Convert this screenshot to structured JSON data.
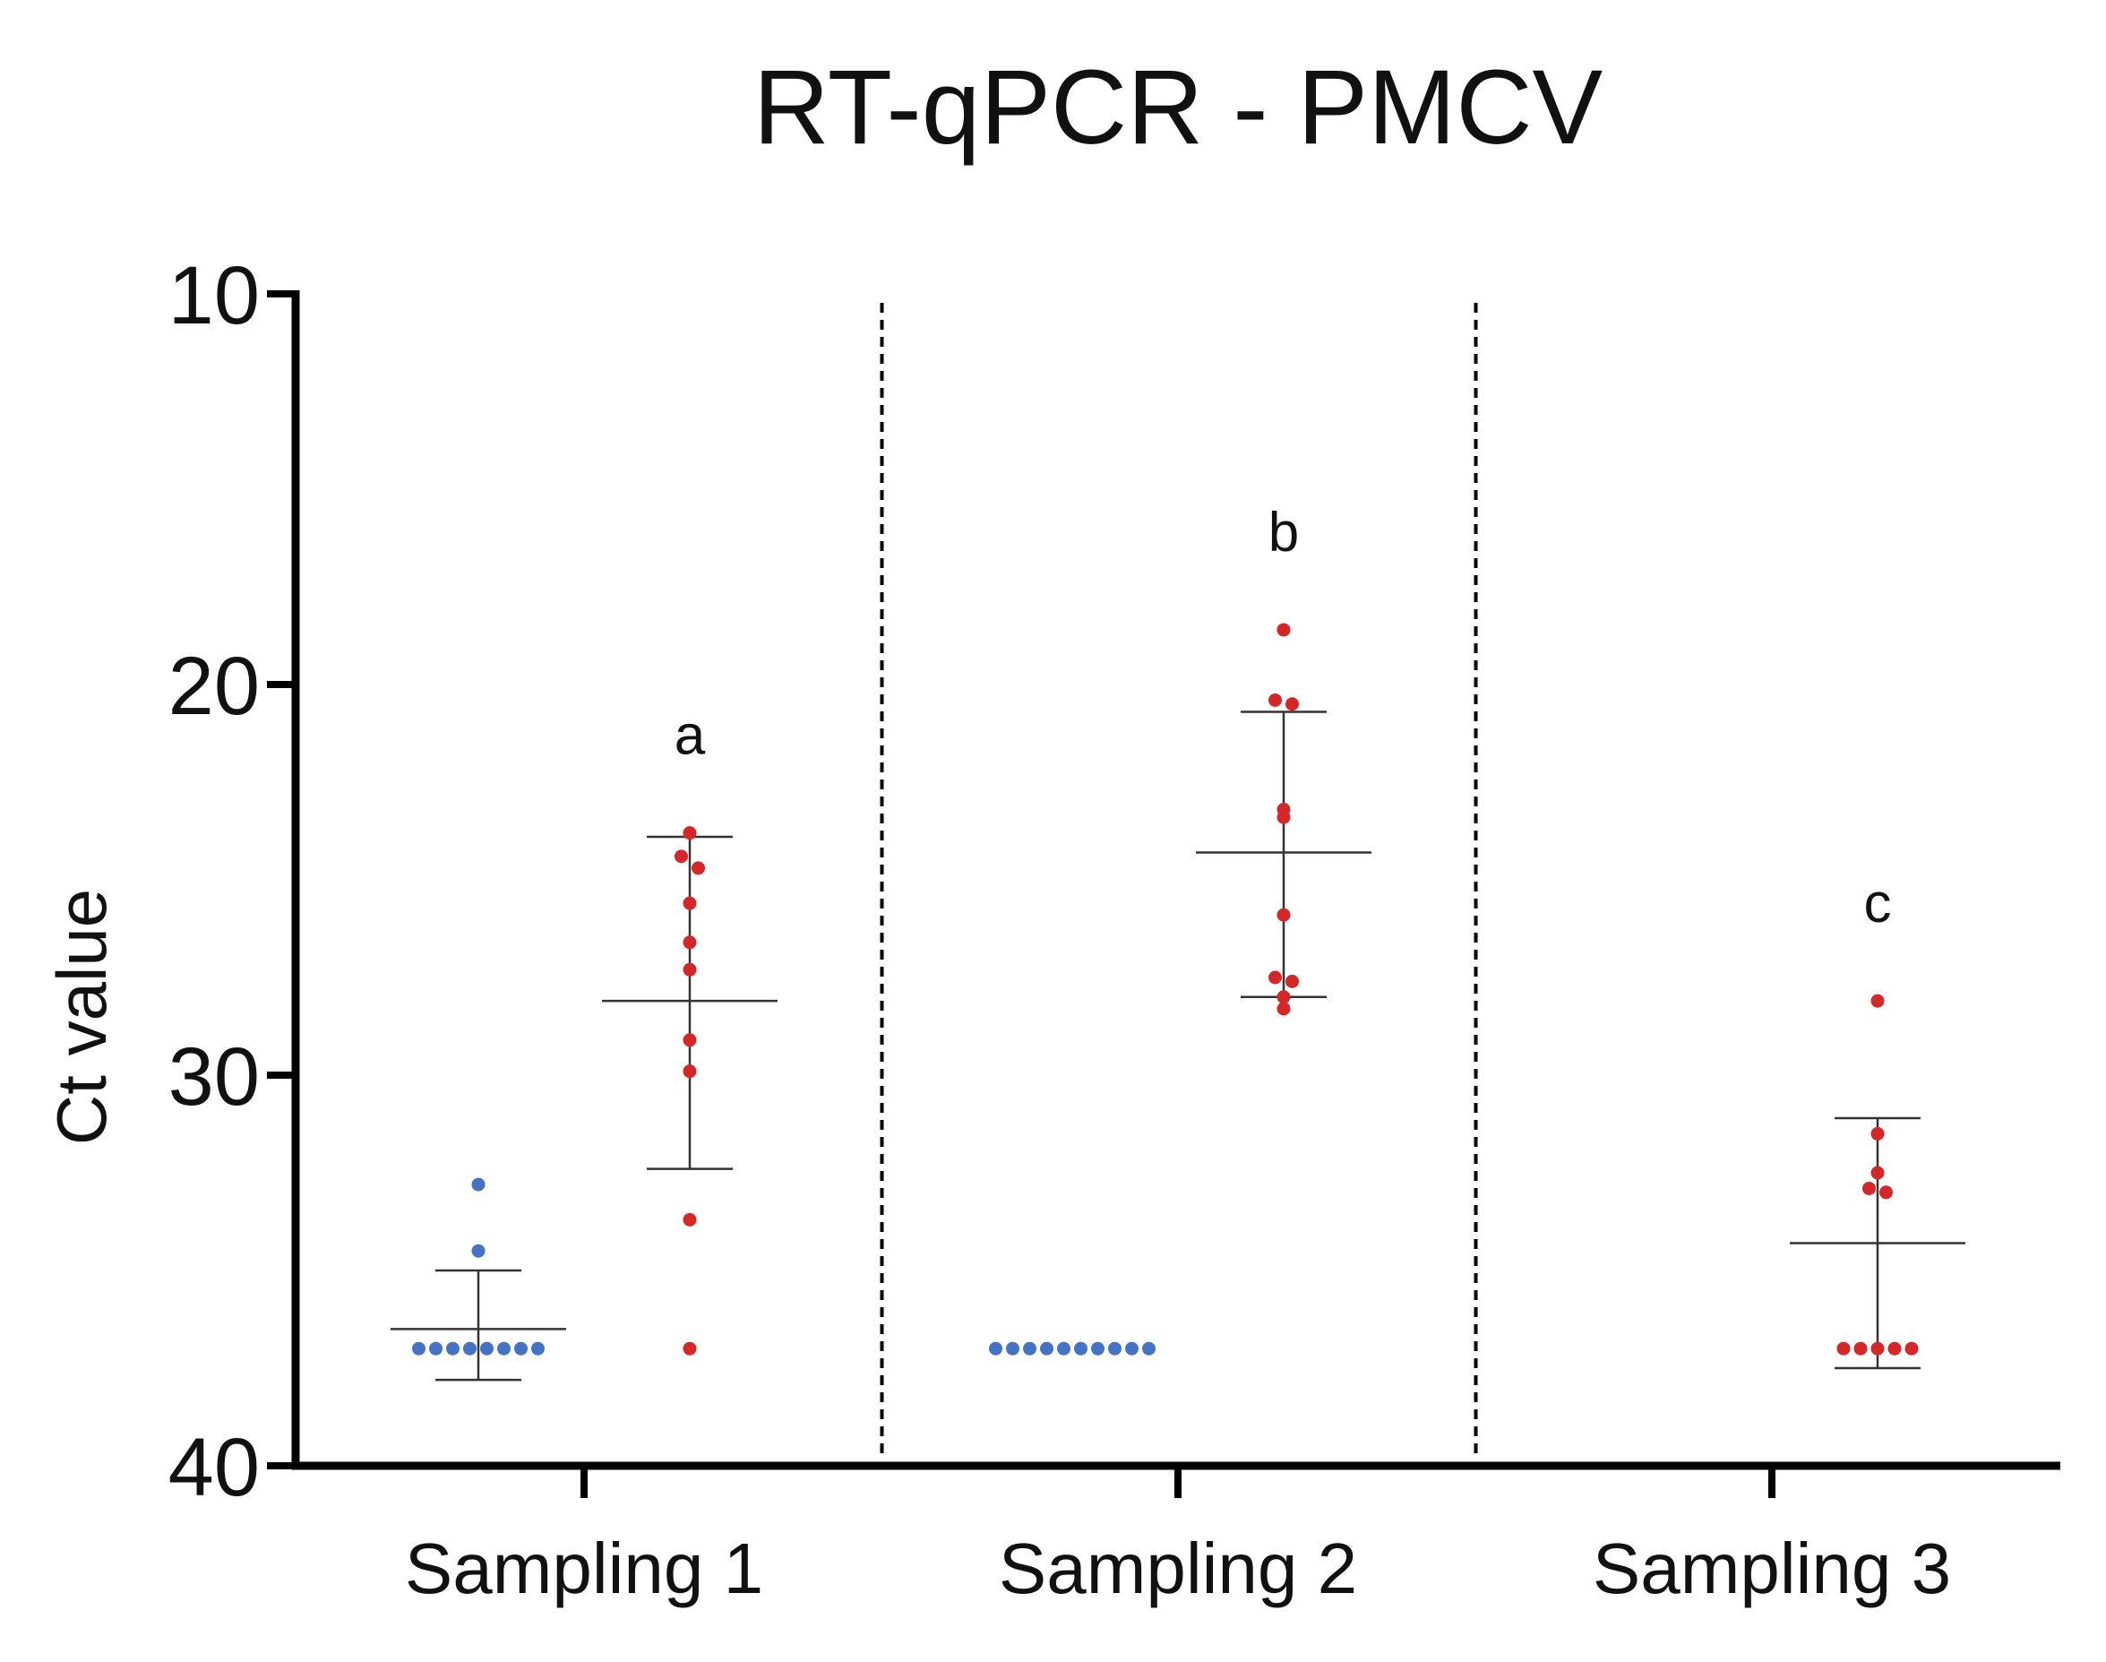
{
  "chart_data": {
    "type": "scatter",
    "title": "RT-qPCR - PMCV",
    "ylabel": "Ct value",
    "xlabel": "",
    "ylim": [
      10,
      40
    ],
    "y_inverted": true,
    "yticks": [
      "10",
      "20",
      "30",
      "40"
    ],
    "grid": false,
    "categories": [
      "Sampling 1",
      "Sampling 2",
      "Sampling 3"
    ],
    "colors": {
      "blue": "#4472c4",
      "red": "#d62728"
    },
    "groups": [
      {
        "category": "Sampling 1",
        "series": "blue",
        "values": [
          32.8,
          34.5,
          37,
          37,
          37,
          37,
          37,
          37,
          37,
          37
        ],
        "mean": 36.5,
        "error": [
          35.0,
          37.8
        ]
      },
      {
        "category": "Sampling 1",
        "series": "red",
        "values": [
          23.8,
          24.4,
          24.7,
          25.6,
          26.6,
          27.3,
          29.1,
          29.9,
          33.7,
          37
        ],
        "mean": 28.1,
        "error": [
          23.9,
          32.4
        ],
        "letter": "a"
      },
      {
        "category": "Sampling 2",
        "series": "blue",
        "values": [
          37,
          37,
          37,
          37,
          37,
          37,
          37,
          37,
          37,
          37
        ],
        "mean": 37,
        "error": [
          37,
          37
        ]
      },
      {
        "category": "Sampling 2",
        "series": "red",
        "values": [
          18.6,
          20.4,
          20.5,
          23.2,
          23.4,
          25.9,
          27.5,
          27.6,
          28.0,
          28.3
        ],
        "mean": 24.3,
        "error": [
          20.7,
          28.0
        ],
        "letter": "b"
      },
      {
        "category": "Sampling 3",
        "series": "red",
        "values": [
          28.1,
          31.5,
          32.5,
          32.9,
          33.0,
          37,
          37,
          37,
          37,
          37
        ],
        "mean": 34.3,
        "error": [
          31.1,
          37.5
        ],
        "letter": "c"
      }
    ]
  }
}
